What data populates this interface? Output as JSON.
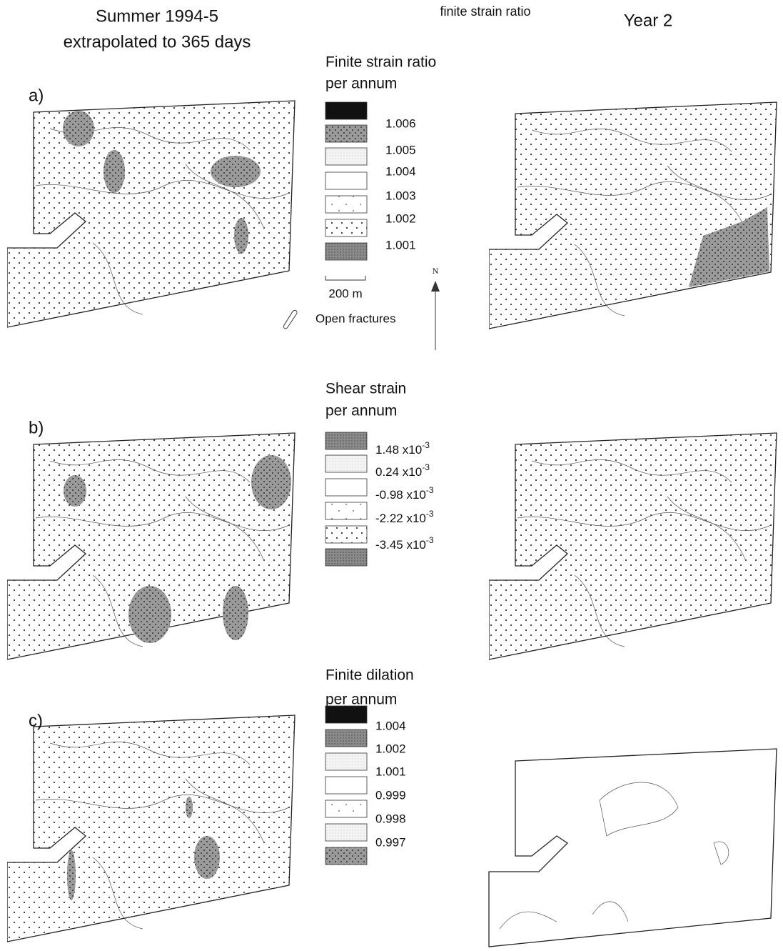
{
  "header": {
    "left_title": [
      "Summer 1994-5",
      "extrapolated to 365 days"
    ],
    "center_note": "finite strain ratio",
    "right_title": "Year 2"
  },
  "panels": [
    {
      "label": "a)",
      "legend": {
        "title": [
          "Finite strain ratio",
          "per annum"
        ],
        "entries": [
          "1.006",
          "1.005",
          "1.004",
          "1.003",
          "1.002",
          "1.001"
        ]
      }
    },
    {
      "label": "b)",
      "legend": {
        "title": [
          "Shear strain",
          "per annum"
        ],
        "entries": [
          {
            "mantissa": "1.48 x10",
            "exponent": "-3"
          },
          {
            "mantissa": "0.24 x10",
            "exponent": "-3"
          },
          {
            "mantissa": "-0.98 x10",
            "exponent": "-3"
          },
          {
            "mantissa": "-2.22 x10",
            "exponent": "-3"
          },
          {
            "mantissa": "-3.45 x10",
            "exponent": "-3"
          }
        ]
      }
    },
    {
      "label": "c)",
      "legend": {
        "title": [
          "Finite dilation",
          "per annum"
        ],
        "entries": [
          "1.004",
          "1.002",
          "1.001",
          "0.999",
          "0.998",
          "0.997"
        ]
      }
    }
  ],
  "scale_bar": "200 m",
  "north": "N",
  "fracture_note": "Open fractures"
}
